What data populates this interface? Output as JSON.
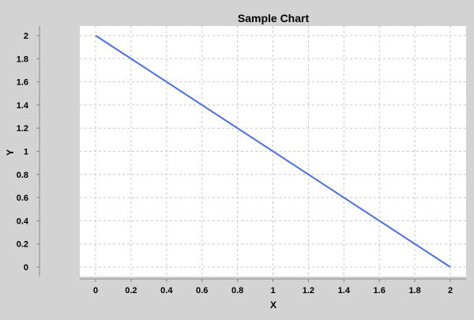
{
  "chart_data": {
    "type": "line",
    "title": "Sample Chart",
    "xlabel": "X",
    "ylabel": "Y",
    "xlim": [
      0,
      2
    ],
    "ylim": [
      0,
      2
    ],
    "x_ticks": [
      "0",
      "0.2",
      "0.4",
      "0.6",
      "0.8",
      "1",
      "1.2",
      "1.4",
      "1.6",
      "1.8",
      "2"
    ],
    "y_ticks": [
      "0",
      "0.2",
      "0.4",
      "0.6",
      "0.8",
      "1",
      "1.2",
      "1.4",
      "1.6",
      "1.8",
      "2"
    ],
    "grid": true,
    "series": [
      {
        "x": [
          0,
          2
        ],
        "y": [
          2,
          0
        ],
        "color": "#4a6fe3"
      }
    ]
  },
  "colors": {
    "background": "#d3d3d3",
    "plot_background": "#ffffff",
    "grid": "#c8c8c8",
    "axis": "#888888"
  }
}
